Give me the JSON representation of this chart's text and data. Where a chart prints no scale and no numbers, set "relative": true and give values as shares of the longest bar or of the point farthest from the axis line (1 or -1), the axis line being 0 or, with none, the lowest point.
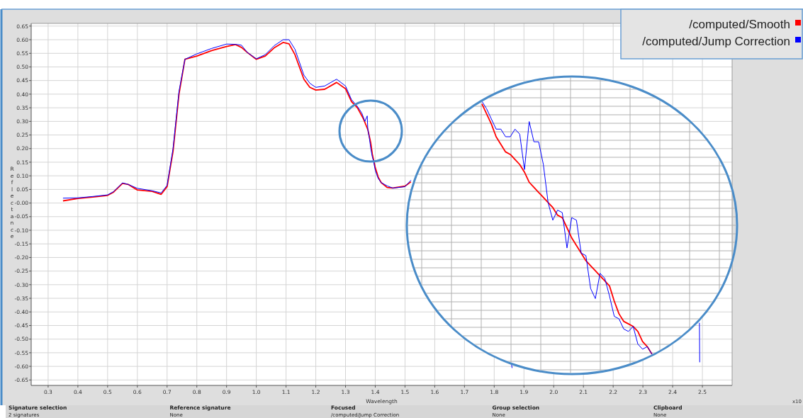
{
  "chart_data": [
    {
      "type": "line",
      "xlabel": "Wavelength",
      "ylabel": "Reflectance",
      "xlim": [
        0.243,
        2.6
      ],
      "ylim": [
        -0.67,
        0.66
      ],
      "xticks": [
        0.3,
        0.4,
        0.5,
        0.6,
        0.7,
        0.8,
        0.9,
        {
          "value": 1,
          "label": "1.0"
        },
        1.1,
        1.2,
        1.3,
        1.4,
        1.5,
        1.6,
        1.7,
        1.8,
        1.9,
        {
          "value": 2,
          "label": "2.0"
        },
        2.1,
        2.2,
        2.3,
        2.4,
        2.5
      ],
      "yticks": [
        {
          "value": 0.65,
          "label": "0.65"
        },
        {
          "value": 0.6,
          "label": "0.60"
        },
        {
          "value": 0.55,
          "label": "0.55"
        },
        {
          "value": 0.5,
          "label": "0.50"
        },
        {
          "value": 0.45,
          "label": "0.45"
        },
        {
          "value": 0.4,
          "label": "0.40"
        },
        {
          "value": 0.35,
          "label": "0.35"
        },
        {
          "value": 0.3,
          "label": "0.30"
        },
        {
          "value": 0.25,
          "label": "0.25"
        },
        {
          "value": 0.2,
          "label": "0.20"
        },
        {
          "value": 0.15,
          "label": "0.15"
        },
        {
          "value": 0.1,
          "label": "0.10"
        },
        {
          "value": 0.05,
          "label": "0.05"
        },
        {
          "value": 0,
          "label": "-0.00"
        },
        {
          "value": -0.05,
          "label": "-0.05"
        },
        {
          "value": -0.1,
          "label": "-0.10"
        },
        {
          "value": -0.15,
          "label": "-0.15"
        },
        {
          "value": -0.2,
          "label": "-0.20"
        },
        {
          "value": -0.25,
          "label": "-0.25"
        },
        {
          "value": -0.3,
          "label": "-0.30"
        },
        {
          "value": -0.35,
          "label": "-0.35"
        },
        {
          "value": -0.4,
          "label": "-0.40"
        },
        {
          "value": -0.45,
          "label": "-0.45"
        },
        {
          "value": -0.5,
          "label": "-0.50"
        },
        {
          "value": -0.55,
          "label": "-0.55"
        },
        {
          "value": -0.6,
          "label": "-0.60"
        },
        {
          "value": -0.65,
          "label": "-0.65"
        }
      ],
      "grid": true,
      "legend": "top right",
      "series": [
        {
          "name": "/computed/Smooth",
          "color": "#ff0000",
          "x": [
            0.35,
            0.4,
            0.45,
            0.5,
            0.52,
            0.55,
            0.57,
            0.6,
            0.65,
            0.68,
            0.7,
            0.72,
            0.74,
            0.76,
            0.8,
            0.85,
            0.9,
            0.93,
            0.95,
            0.97,
            1.0,
            1.03,
            1.06,
            1.09,
            1.11,
            1.13,
            1.16,
            1.18,
            1.2,
            1.23,
            1.27,
            1.3,
            1.32,
            1.34,
            1.36,
            1.375,
            1.385,
            1.39,
            1.4,
            1.41,
            1.42,
            1.44,
            1.459,
            1.5,
            1.52
          ],
          "values": [
            0.008,
            0.017,
            0.022,
            0.028,
            0.04,
            0.072,
            0.068,
            0.048,
            0.043,
            0.032,
            0.06,
            0.19,
            0.4,
            0.528,
            0.54,
            0.56,
            0.575,
            0.582,
            0.572,
            0.553,
            0.528,
            0.54,
            0.57,
            0.59,
            0.585,
            0.545,
            0.455,
            0.425,
            0.415,
            0.418,
            0.443,
            0.42,
            0.373,
            0.35,
            0.31,
            0.27,
            0.22,
            0.18,
            0.13,
            0.095,
            0.075,
            0.057,
            0.055,
            0.062,
            0.078
          ]
        },
        {
          "name": "/computed/Jump Correction",
          "color": "#0000ff",
          "x": [
            0.35,
            0.4,
            0.45,
            0.5,
            0.52,
            0.55,
            0.57,
            0.6,
            0.65,
            0.68,
            0.7,
            0.72,
            0.74,
            0.76,
            0.8,
            0.85,
            0.9,
            0.93,
            0.95,
            0.97,
            1.0,
            1.03,
            1.06,
            1.09,
            1.11,
            1.13,
            1.16,
            1.18,
            1.2,
            1.23,
            1.27,
            1.3,
            1.32,
            1.34,
            1.355,
            1.365,
            1.373,
            1.375,
            1.38,
            1.385,
            1.39,
            1.395,
            1.4,
            1.41,
            1.42,
            1.44,
            1.459,
            1.5,
            1.52,
            1.7,
            1.858,
            1.86,
            2.0,
            2.49,
            2.491
          ],
          "values": [
            0.018,
            0.019,
            0.024,
            0.03,
            0.042,
            0.074,
            0.068,
            0.054,
            0.045,
            0.037,
            0.065,
            0.2,
            0.41,
            0.528,
            0.548,
            0.568,
            0.584,
            0.583,
            0.58,
            0.553,
            0.53,
            0.545,
            0.578,
            0.6,
            0.6,
            0.565,
            0.47,
            0.44,
            0.425,
            0.43,
            0.455,
            0.43,
            0.38,
            0.355,
            0.33,
            0.3,
            0.32,
            0.27,
            0.24,
            0.2,
            0.17,
            0.15,
            0.12,
            0.09,
            0.075,
            0.063,
            0.055,
            0.06,
            0.084,
            null,
            -0.59,
            -0.606,
            null,
            -0.44,
            -0.585
          ]
        }
      ],
      "annotations": [
        "x10",
        "Signature selection",
        "2 signatures",
        "Reference signature",
        "None",
        "Focused",
        "/computed/Jump Correction",
        "Group selection",
        "None",
        "Clipboard",
        "None"
      ]
    },
    {
      "type": "line",
      "relative": true,
      "grid": true,
      "categories": [
        null,
        null,
        null,
        null,
        null,
        null,
        null,
        null,
        null,
        null,
        null,
        null,
        null,
        null,
        null,
        null,
        null,
        null,
        null,
        null,
        null,
        null,
        null,
        null,
        null,
        null,
        null,
        null,
        null,
        null,
        null,
        null,
        null,
        null,
        null,
        null,
        null
      ],
      "series": [
        {
          "color": "#ff0000",
          "values": [
            0.99,
            0.95,
            0.91,
            0.86,
            0.83,
            0.8,
            0.79,
            0.77,
            0.75,
            0.72,
            0.68,
            0.66,
            0.64,
            0.62,
            0.6,
            0.58,
            0.55,
            0.54,
            0.5,
            0.46,
            0.43,
            0.4,
            0.37,
            0.35,
            0.33,
            0.31,
            0.29,
            0.27,
            0.21,
            0.16,
            0.13,
            0.12,
            0.11,
            0.09,
            0.05,
            0.03,
            0
          ]
        },
        {
          "color": "#0000ff",
          "values": [
            1,
            0.97,
            0.93,
            0.89,
            0.89,
            0.86,
            0.86,
            0.89,
            0.87,
            0.73,
            0.92,
            0.84,
            0.84,
            0.75,
            0.6,
            0.53,
            0.57,
            0.56,
            0.42,
            0.54,
            0.53,
            0.4,
            0.39,
            0.26,
            0.22,
            0.32,
            0.3,
            0.23,
            0.15,
            0.14,
            0.1,
            0.09,
            0.11,
            0.04,
            0.02,
            0.03,
            0
          ]
        }
      ]
    }
  ]
}
